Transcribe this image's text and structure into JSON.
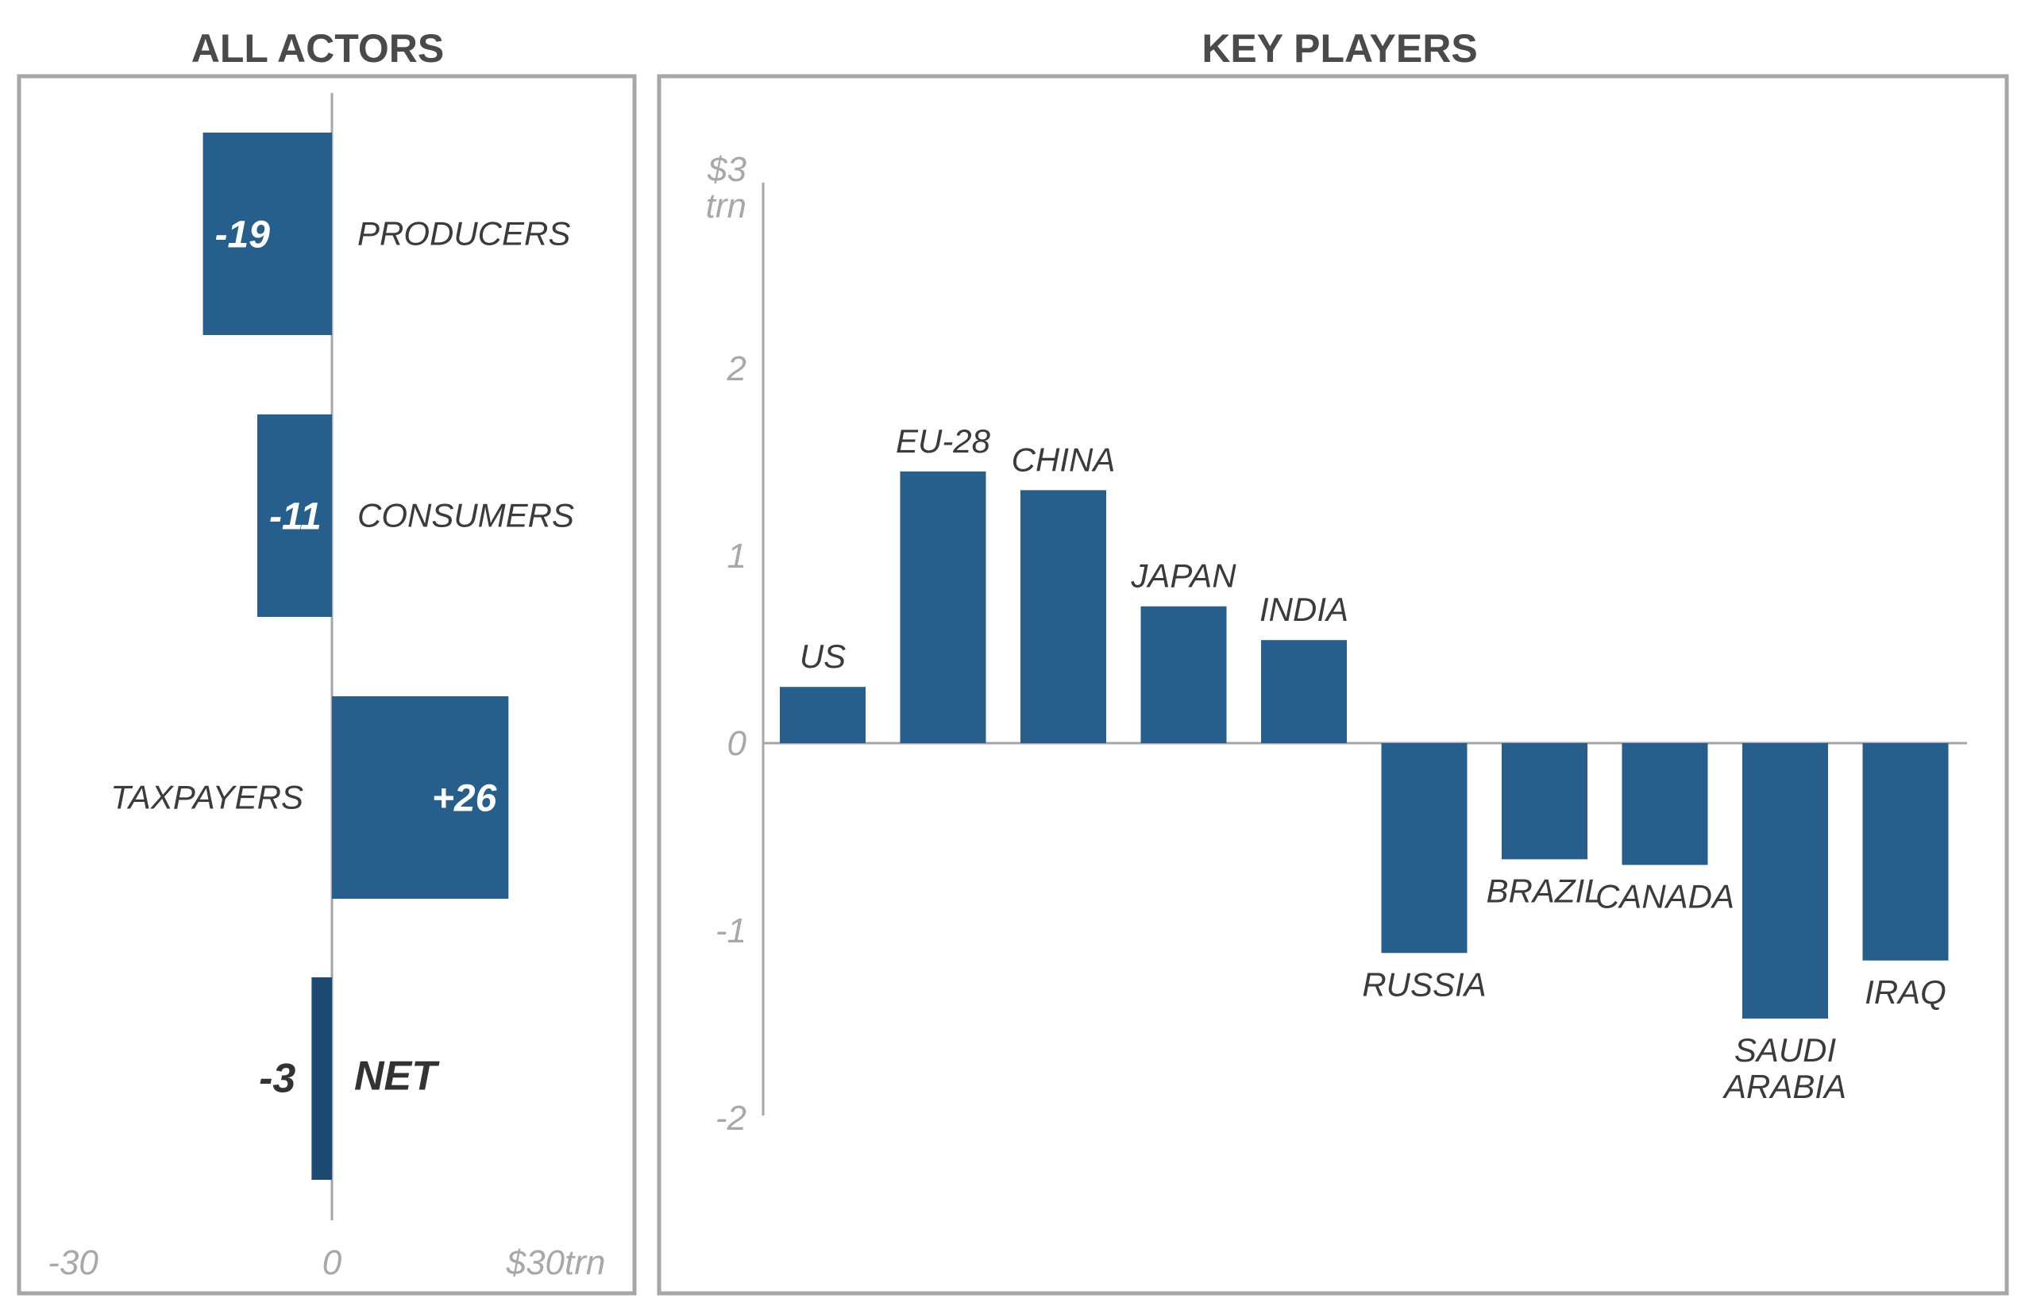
{
  "colors": {
    "bar": "#265f8c",
    "net_bar": "#1d4a72",
    "panel_border": "#a6a6aa",
    "axis": "#a6a6aa",
    "tick_text": "#a8a8ac",
    "label_text": "#3b3b3b",
    "title_text": "#4a4a4a"
  },
  "chart_data": [
    {
      "type": "bar",
      "orientation": "horizontal",
      "title": "ALL ACTORS",
      "categories": [
        "PRODUCERS",
        "CONSUMERS",
        "TAXPAYERS",
        "NET"
      ],
      "values": [
        -19,
        -11,
        26,
        -3
      ],
      "value_labels": [
        "-19",
        "-11",
        "+26",
        "-3"
      ],
      "xlim": [
        -30,
        30
      ],
      "x_ticks": [
        "-30",
        "0",
        "$30trn"
      ],
      "grid": false
    },
    {
      "type": "bar",
      "orientation": "vertical",
      "title": "KEY PLAYERS",
      "categories": [
        "US",
        "EU-28",
        "CHINA",
        "JAPAN",
        "INDIA",
        "RUSSIA",
        "BRAZIL",
        "CANADA",
        "SAUDI ARABIA",
        "IRAQ"
      ],
      "values": [
        0.3,
        1.45,
        1.35,
        0.73,
        0.55,
        -1.12,
        -0.62,
        -0.65,
        -1.47,
        -1.16
      ],
      "ylim": [
        -2,
        3
      ],
      "y_ticks": [
        "$3 trn",
        "2",
        "1",
        "0",
        "-1",
        "-2"
      ],
      "grid": false
    }
  ]
}
